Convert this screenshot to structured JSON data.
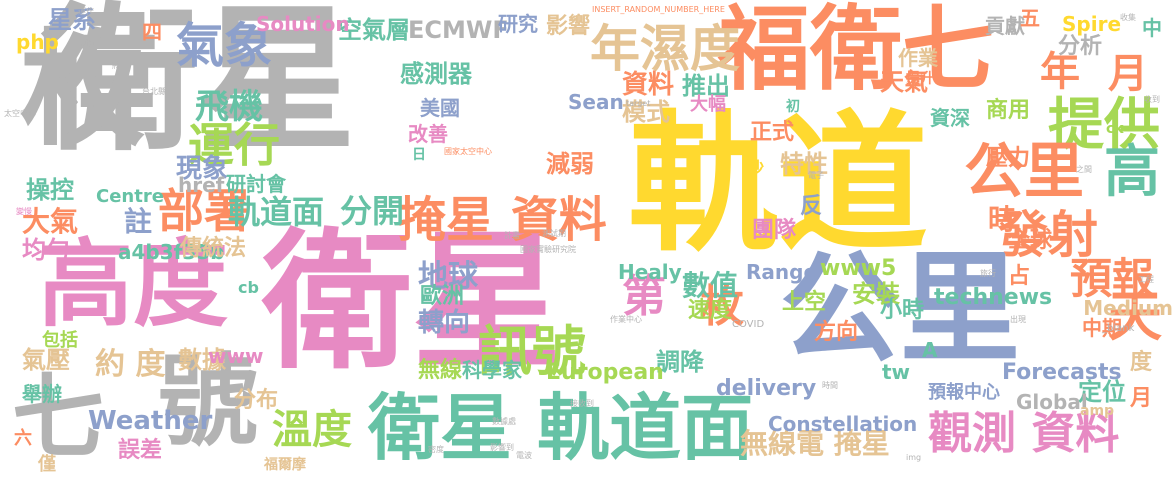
{
  "wordcloud": {
    "palette": {
      "pink": "#e78ac3",
      "orange": "#fc8d62",
      "green": "#66c2a5",
      "blue": "#8da0cb",
      "lime": "#a6d854",
      "yellow": "#ffd92f",
      "tan": "#e5c494",
      "gray": "#b3b3b3"
    },
    "words": [
      {
        "id": "w0",
        "text": "衛星"
      },
      {
        "id": "w1",
        "text": "軌道"
      },
      {
        "id": "w2",
        "text": "衛星"
      },
      {
        "id": "w3",
        "text": "枚"
      },
      {
        "id": "w4",
        "text": "福衛七"
      },
      {
        "id": "w5",
        "text": "公里"
      },
      {
        "id": "w6",
        "text": "高度"
      },
      {
        "id": "w7",
        "text": "號"
      },
      {
        "id": "w8",
        "text": "七"
      },
      {
        "id": "w9",
        "text": "衛星 軌道面"
      },
      {
        "id": "w10",
        "text": "氣象"
      },
      {
        "id": "w11",
        "text": "年濕度"
      },
      {
        "id": "w12",
        "text": "年"
      },
      {
        "id": "w13",
        "text": "月"
      },
      {
        "id": "w14",
        "text": "提供"
      },
      {
        "id": "w15",
        "text": "公里"
      },
      {
        "id": "w16",
        "text": "高"
      },
      {
        "id": "w17",
        "text": "掩星 資料"
      },
      {
        "id": "w18",
        "text": "部署"
      },
      {
        "id": "w19",
        "text": "運行"
      },
      {
        "id": "w20",
        "text": "發射"
      },
      {
        "id": "w21",
        "text": "天"
      },
      {
        "id": "w22",
        "text": "預報"
      },
      {
        "id": "w23",
        "text": "訊號"
      },
      {
        "id": "w24",
        "text": "觀測 資料"
      },
      {
        "id": "w25",
        "text": "溫度"
      },
      {
        "id": "w26",
        "text": "枚"
      },
      {
        "id": "w27",
        "text": "第"
      },
      {
        "id": "w28",
        "text": "飛機"
      },
      {
        "id": "w29",
        "text": "軌道面"
      },
      {
        "id": "w30",
        "text": "分開"
      },
      {
        "id": "w31",
        "text": "約 度"
      },
      {
        "id": "w32",
        "text": "ECMWF"
      },
      {
        "id": "w33",
        "text": "空氣層"
      },
      {
        "id": "w34",
        "text": "研究"
      },
      {
        "id": "w35",
        "text": "影響"
      },
      {
        "id": "w36",
        "text": "無線電 掩星"
      },
      {
        "id": "w37",
        "text": "Weather"
      },
      {
        "id": "w38",
        "text": "現象"
      },
      {
        "id": "w39",
        "text": "感測器"
      },
      {
        "id": "w40",
        "text": "資料"
      },
      {
        "id": "w41",
        "text": "推出"
      },
      {
        "id": "w42",
        "text": "模式"
      },
      {
        "id": "w43",
        "text": "天氣"
      },
      {
        "id": "w44",
        "text": "作業"
      },
      {
        "id": "w45",
        "text": "分析"
      },
      {
        "id": "w46",
        "text": "貢獻"
      },
      {
        "id": "w47",
        "text": "星系"
      },
      {
        "id": "w48",
        "text": "php"
      },
      {
        "id": "w49",
        "text": "Solution"
      },
      {
        "id": "w50",
        "text": "Spire"
      },
      {
        "id": "w51",
        "text": "五"
      },
      {
        "id": "w52",
        "text": "中"
      },
      {
        "id": "w53",
        "text": "四"
      },
      {
        "id": "w54",
        "text": "大氣"
      },
      {
        "id": "w55",
        "text": "註"
      },
      {
        "id": "w56",
        "text": "操控"
      },
      {
        "id": "w57",
        "text": "變慢"
      },
      {
        "id": "w58",
        "text": "均勻"
      },
      {
        "id": "w59",
        "text": "Centre"
      },
      {
        "id": "w60",
        "text": "href"
      },
      {
        "id": "w61",
        "text": "研討會"
      },
      {
        "id": "w62",
        "text": "a4b3f35b"
      },
      {
        "id": "w63",
        "text": "傳統法"
      },
      {
        "id": "w64",
        "text": "地球"
      },
      {
        "id": "w65",
        "text": "www5"
      },
      {
        "id": "w66",
        "text": "數值"
      },
      {
        "id": "w67",
        "text": "安裝"
      },
      {
        "id": "w68",
        "text": "technews"
      },
      {
        "id": "w69",
        "text": "全球"
      },
      {
        "id": "w70",
        "text": "時"
      },
      {
        "id": "w71",
        "text": "團隊"
      },
      {
        "id": "w72",
        "text": "減弱"
      },
      {
        "id": "w73",
        "text": "特性"
      },
      {
        "id": "w74",
        "text": "正式"
      },
      {
        "id": "w75",
        "text": "壓力"
      },
      {
        "id": "w76",
        "text": "商用"
      },
      {
        "id": "w77",
        "text": "資深"
      },
      {
        "id": "w78",
        "text": "美國"
      },
      {
        "id": "w79",
        "text": "改善"
      },
      {
        "id": "w80",
        "text": "Sean"
      },
      {
        "id": "w81",
        "text": "大幅"
      },
      {
        "id": "w82",
        "text": "轉向"
      },
      {
        "id": "w83",
        "text": "速度"
      },
      {
        "id": "w84",
        "text": "小時"
      },
      {
        "id": "w85",
        "text": "方向"
      },
      {
        "id": "w86",
        "text": "歐洲"
      },
      {
        "id": "w87",
        "text": "Healy"
      },
      {
        "id": "w88",
        "text": "Range"
      },
      {
        "id": "w89",
        "text": "上空"
      },
      {
        "id": "w90",
        "text": "中期"
      },
      {
        "id": "w91",
        "text": "Medium"
      },
      {
        "id": "w92",
        "text": "調降"
      },
      {
        "id": "w93",
        "text": "delivery"
      },
      {
        "id": "w94",
        "text": "無線"
      },
      {
        "id": "w95",
        "text": "科學家"
      },
      {
        "id": "w96",
        "text": "European"
      },
      {
        "id": "w97",
        "text": "Forecasts"
      },
      {
        "id": "w98",
        "text": "定位"
      },
      {
        "id": "w99",
        "text": "Global"
      },
      {
        "id": "w100",
        "text": "預報中心"
      },
      {
        "id": "w101",
        "text": "Constellation"
      },
      {
        "id": "w102",
        "text": "分布"
      },
      {
        "id": "w103",
        "text": "數據"
      },
      {
        "id": "w104",
        "text": "氣壓"
      },
      {
        "id": "w105",
        "text": "包括"
      },
      {
        "id": "w106",
        "text": "舉辦"
      },
      {
        "id": "w107",
        "text": "誤差"
      },
      {
        "id": "w108",
        "text": "六"
      },
      {
        "id": "w109",
        "text": "僅"
      },
      {
        "id": "w110",
        "text": "www"
      },
      {
        "id": "w111",
        "text": "tw"
      },
      {
        "id": "w112",
        "text": "A"
      },
      {
        "id": "w113",
        "text": "度"
      },
      {
        "id": "w114",
        "text": "月"
      },
      {
        "id": "w115",
        "text": "cb"
      },
      {
        "id": "w116",
        "text": "amp"
      },
      {
        "id": "w117",
        "text": "日"
      },
      {
        "id": "w118",
        "text": "初"
      },
      {
        "id": "w119",
        "text": "反"
      },
      {
        "id": "w120",
        "text": "占"
      },
      {
        "id": "w121",
        "text": "提升"
      },
      {
        "id": "w122",
        "text": "沙"
      },
      {
        "id": "w123",
        "text": "INSERT_RANDOM_NUMBER_HERE"
      },
      {
        "id": "w124",
        "text": "福爾摩"
      },
      {
        "id": "w125",
        "text": "國家實驗研究院"
      },
      {
        "id": "w126",
        "text": "測試期"
      },
      {
        "id": "w127",
        "text": "計畫"
      },
      {
        "id": "w128",
        "text": "國家太空中心"
      },
      {
        "id": "w129",
        "text": "太空中心"
      },
      {
        "id": "w130",
        "text": "ck"
      },
      {
        "id": "w131",
        "text": "target"
      },
      {
        "id": "w132",
        "text": "_blank"
      },
      {
        "id": "w133",
        "text": "COVID"
      },
      {
        "id": "w134",
        "text": "img"
      },
      {
        "id": "w135",
        "text": "收到"
      },
      {
        "id": "w136",
        "text": "接收到"
      },
      {
        "id": "w137",
        "text": "數據處"
      },
      {
        "id": "w138",
        "text": "影響到"
      },
      {
        "id": "w139",
        "text": "電子"
      },
      {
        "id": "w140",
        "text": "之間"
      },
      {
        "id": "w141",
        "text": "工程"
      },
      {
        "id": "w142",
        "text": "收集"
      },
      {
        "id": "w143",
        "text": "作業中心"
      },
      {
        "id": "w144",
        "text": "運作"
      },
      {
        "id": "w145",
        "text": "通過"
      },
      {
        "id": "w146",
        "text": "將"
      },
      {
        "id": "w147",
        "text": "台北縣"
      },
      {
        "id": "w148",
        "text": "密度"
      },
      {
        "id": "w149",
        "text": "電波"
      },
      {
        "id": "w150",
        "text": "旅行"
      },
      {
        "id": "w151",
        "text": "時間"
      },
      {
        "id": "w152",
        "text": "出現"
      }
    ]
  }
}
